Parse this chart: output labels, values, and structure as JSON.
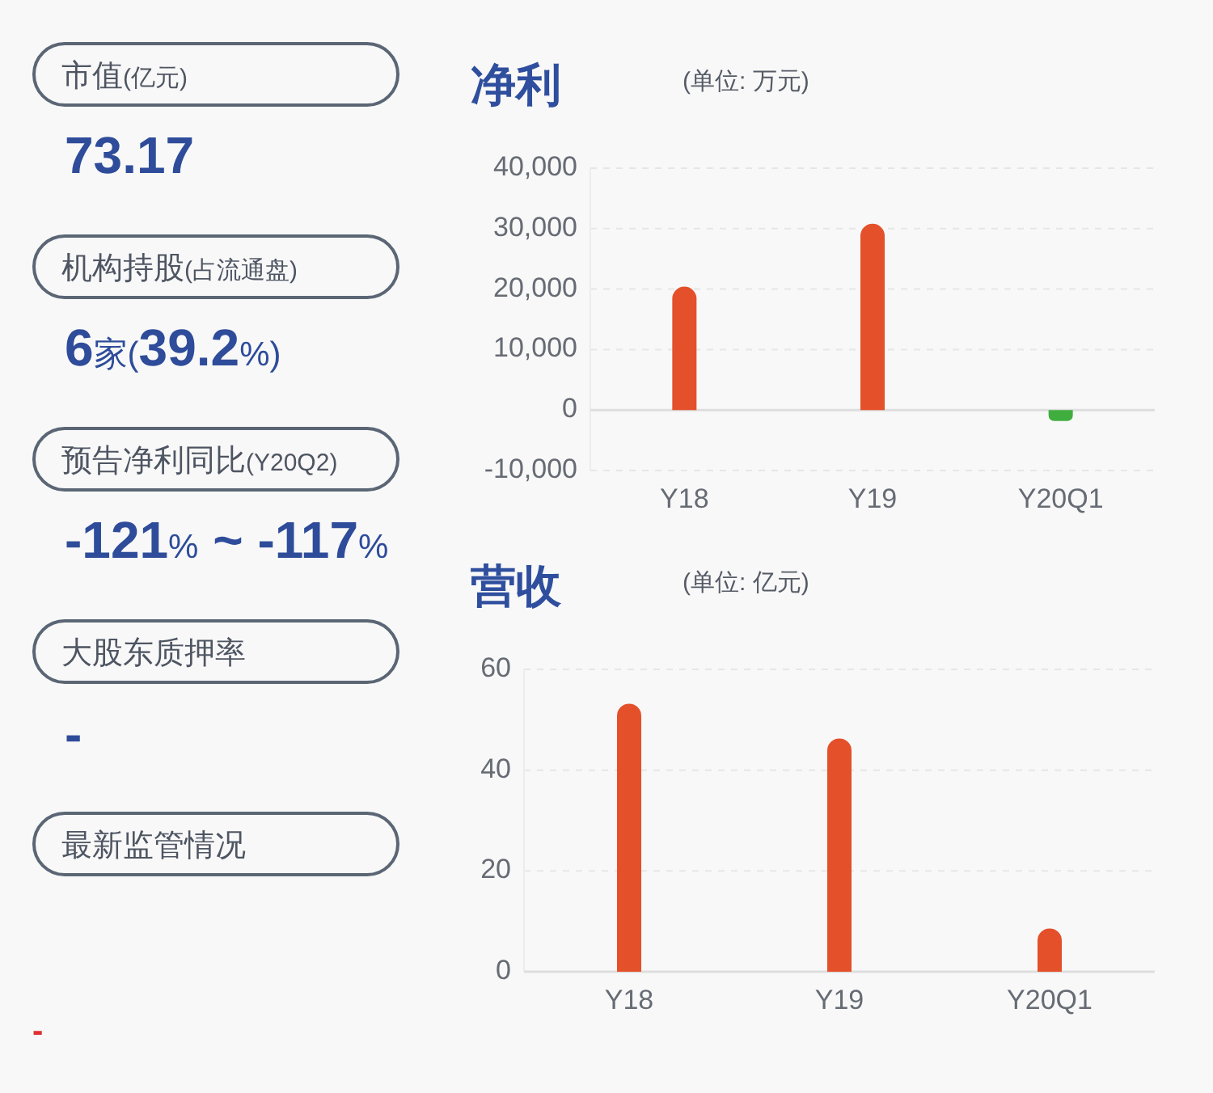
{
  "chart_data": [
    {
      "type": "other",
      "annotations": [
        "市值(亿元)",
        "73.17",
        "机构持股(占流通盘)",
        "6家(39.2%)",
        "预告净利同比(Y20Q2)",
        "-121% ~ -117%",
        "大股东质押率",
        "-",
        "最新监管情况",
        "-"
      ]
    },
    {
      "type": "bar",
      "title": "净利",
      "subtitle": "(单位: 万元)",
      "categories": [
        "Y18",
        "Y19",
        "Y20Q1"
      ],
      "values": [
        20400,
        30800,
        -1800
      ],
      "colors": [
        "#e3502a",
        "#e3502a",
        "#3fae3f"
      ],
      "ylim": [
        -10000,
        40000
      ],
      "yticks": [
        {
          "value": -10000,
          "label": "-10,000"
        },
        0,
        {
          "value": 10000,
          "label": "10,000"
        },
        {
          "value": 20000,
          "label": "20,000"
        },
        {
          "value": 30000,
          "label": "30,000"
        },
        {
          "value": 40000,
          "label": "40,000"
        }
      ],
      "grid": "y"
    },
    {
      "type": "bar",
      "title": "营收",
      "subtitle": "(单位: 亿元)",
      "categories": [
        "Y18",
        "Y19",
        "Y20Q1"
      ],
      "values": [
        53.2,
        46.3,
        8.6
      ],
      "color": "#e3502a",
      "ylim": [
        0,
        60
      ],
      "yticks": [
        0,
        20,
        40,
        60
      ],
      "grid": "y"
    }
  ]
}
